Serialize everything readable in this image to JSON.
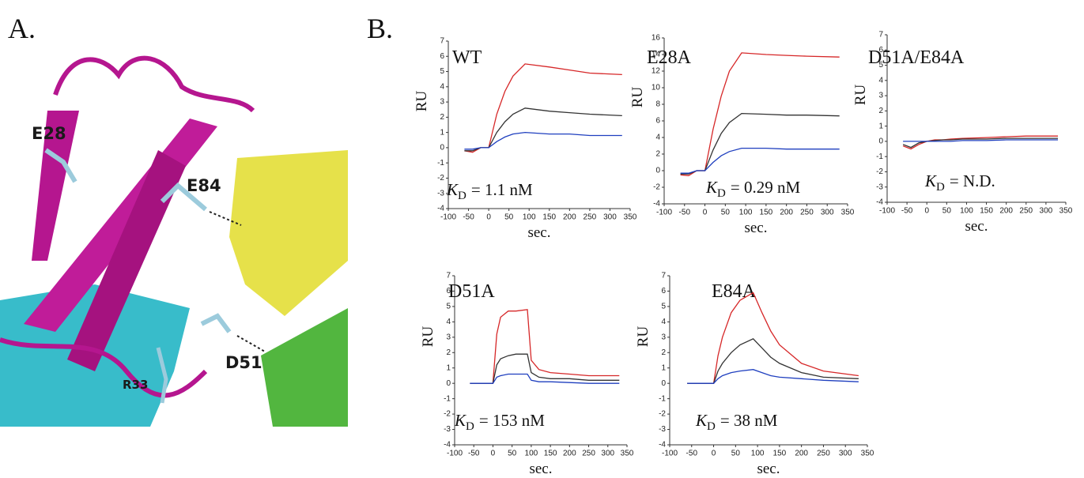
{
  "panels": {
    "a": {
      "label": "A.",
      "residues": [
        "E28",
        "E84",
        "D51",
        "R33"
      ]
    },
    "b": {
      "label": "B."
    }
  },
  "chart_data": [
    {
      "type": "line",
      "title": "WT",
      "y_label": "RU",
      "x_label": "sec.",
      "annotation": {
        "symbol": "K",
        "subscript": "D",
        "value": "= 1.1 nM"
      },
      "xlim": [
        -100,
        350
      ],
      "xticks": [
        -100,
        -50,
        0,
        50,
        100,
        150,
        200,
        250,
        300,
        350
      ],
      "ylim": [
        -4,
        7
      ],
      "yticks": [
        -4,
        -3,
        -2,
        -1,
        0,
        1,
        2,
        3,
        4,
        5,
        6,
        7
      ],
      "x": [
        -60,
        -40,
        -20,
        0,
        20,
        40,
        60,
        90,
        150,
        200,
        250,
        330
      ],
      "series": [
        {
          "color": "#d62728",
          "values": [
            -0.2,
            -0.3,
            0,
            0,
            2.2,
            3.7,
            4.7,
            5.5,
            5.3,
            5.1,
            4.9,
            4.8
          ]
        },
        {
          "color": "#333333",
          "values": [
            -0.2,
            -0.2,
            0,
            0,
            1.0,
            1.7,
            2.2,
            2.6,
            2.4,
            2.3,
            2.2,
            2.1
          ]
        },
        {
          "color": "#1f3fbf",
          "values": [
            -0.1,
            -0.1,
            0,
            0,
            0.4,
            0.7,
            0.9,
            1.0,
            0.9,
            0.9,
            0.8,
            0.8
          ]
        }
      ]
    },
    {
      "type": "line",
      "title": "E28A",
      "y_label": "RU",
      "x_label": "sec.",
      "annotation": {
        "symbol": "K",
        "subscript": "D",
        "value": "= 0.29 nM"
      },
      "xlim": [
        -100,
        350
      ],
      "xticks": [
        -100,
        -50,
        0,
        50,
        100,
        150,
        200,
        250,
        300,
        350
      ],
      "ylim": [
        -4,
        16
      ],
      "yticks": [
        -4,
        -2,
        0,
        2,
        4,
        6,
        8,
        10,
        12,
        14,
        16
      ],
      "x": [
        -60,
        -40,
        -20,
        0,
        20,
        40,
        60,
        90,
        150,
        200,
        250,
        330
      ],
      "series": [
        {
          "color": "#d62728",
          "values": [
            -0.5,
            -0.6,
            0,
            0,
            5,
            9,
            12,
            14.2,
            14.0,
            13.9,
            13.8,
            13.7
          ]
        },
        {
          "color": "#333333",
          "values": [
            -0.4,
            -0.4,
            0,
            0,
            2.5,
            4.5,
            5.8,
            6.9,
            6.8,
            6.7,
            6.7,
            6.6
          ]
        },
        {
          "color": "#1f3fbf",
          "values": [
            -0.3,
            -0.3,
            0,
            0,
            1,
            1.8,
            2.3,
            2.7,
            2.7,
            2.6,
            2.6,
            2.6
          ]
        }
      ]
    },
    {
      "type": "line",
      "title": "D51A/E84A",
      "y_label": "RU",
      "x_label": "sec.",
      "annotation": {
        "symbol": "K",
        "subscript": "D",
        "value": "= N.D."
      },
      "xlim": [
        -100,
        350
      ],
      "xticks": [
        -100,
        -50,
        0,
        50,
        100,
        150,
        200,
        250,
        300,
        350
      ],
      "ylim": [
        -4,
        7
      ],
      "yticks": [
        -4,
        -3,
        -2,
        -1,
        0,
        1,
        2,
        3,
        4,
        5,
        6,
        7
      ],
      "x": [
        -60,
        -40,
        -20,
        0,
        20,
        40,
        60,
        90,
        150,
        200,
        250,
        330
      ],
      "series": [
        {
          "color": "#d62728",
          "values": [
            -0.3,
            -0.5,
            -0.2,
            0,
            0.1,
            0.1,
            0.15,
            0.2,
            0.25,
            0.3,
            0.35,
            0.35
          ]
        },
        {
          "color": "#333333",
          "values": [
            -0.2,
            -0.4,
            -0.1,
            0,
            0.05,
            0.1,
            0.1,
            0.15,
            0.15,
            0.2,
            0.2,
            0.2
          ]
        },
        {
          "color": "#1f3fbf",
          "values": [
            0,
            0,
            0,
            0,
            0,
            0,
            0,
            0.05,
            0.05,
            0.1,
            0.1,
            0.1
          ]
        }
      ]
    },
    {
      "type": "line",
      "title": "D51A",
      "y_label": "RU",
      "x_label": "sec.",
      "annotation": {
        "symbol": "K",
        "subscript": "D",
        "value": "= 153 nM"
      },
      "xlim": [
        -100,
        350
      ],
      "xticks": [
        -100,
        -50,
        0,
        50,
        100,
        150,
        200,
        250,
        300,
        350
      ],
      "ylim": [
        -4,
        7
      ],
      "yticks": [
        -4,
        -3,
        -2,
        -1,
        0,
        1,
        2,
        3,
        4,
        5,
        6,
        7
      ],
      "x": [
        -60,
        -40,
        -20,
        0,
        10,
        20,
        40,
        60,
        90,
        100,
        120,
        150,
        200,
        250,
        330
      ],
      "series": [
        {
          "color": "#d62728",
          "values": [
            0,
            0,
            0,
            0,
            3.2,
            4.3,
            4.7,
            4.7,
            4.8,
            1.5,
            0.9,
            0.7,
            0.6,
            0.5,
            0.5
          ]
        },
        {
          "color": "#333333",
          "values": [
            0,
            0,
            0,
            0,
            1.2,
            1.6,
            1.8,
            1.9,
            1.9,
            0.7,
            0.4,
            0.3,
            0.3,
            0.2,
            0.2
          ]
        },
        {
          "color": "#1f3fbf",
          "values": [
            0,
            0,
            0,
            0,
            0.4,
            0.5,
            0.6,
            0.6,
            0.6,
            0.2,
            0.1,
            0.1,
            0.05,
            0,
            0
          ]
        }
      ]
    },
    {
      "type": "line",
      "title": "E84A",
      "y_label": "RU",
      "x_label": "sec.",
      "annotation": {
        "symbol": "K",
        "subscript": "D",
        "value": "= 38 nM"
      },
      "xlim": [
        -100,
        350
      ],
      "xticks": [
        -100,
        -50,
        0,
        50,
        100,
        150,
        200,
        250,
        300,
        350
      ],
      "ylim": [
        -4,
        7
      ],
      "yticks": [
        -4,
        -3,
        -2,
        -1,
        0,
        1,
        2,
        3,
        4,
        5,
        6,
        7
      ],
      "x": [
        -60,
        -40,
        -20,
        0,
        10,
        20,
        40,
        60,
        90,
        110,
        130,
        150,
        200,
        250,
        330
      ],
      "series": [
        {
          "color": "#d62728",
          "values": [
            0,
            0,
            0,
            0,
            1.8,
            3.0,
            4.6,
            5.4,
            5.9,
            4.6,
            3.4,
            2.5,
            1.3,
            0.8,
            0.5
          ]
        },
        {
          "color": "#333333",
          "values": [
            0,
            0,
            0,
            0,
            0.8,
            1.3,
            2.0,
            2.5,
            2.9,
            2.3,
            1.7,
            1.3,
            0.7,
            0.4,
            0.3
          ]
        },
        {
          "color": "#1f3fbf",
          "values": [
            0,
            0,
            0,
            0,
            0.3,
            0.5,
            0.7,
            0.8,
            0.9,
            0.7,
            0.5,
            0.4,
            0.3,
            0.2,
            0.1
          ]
        }
      ]
    }
  ]
}
